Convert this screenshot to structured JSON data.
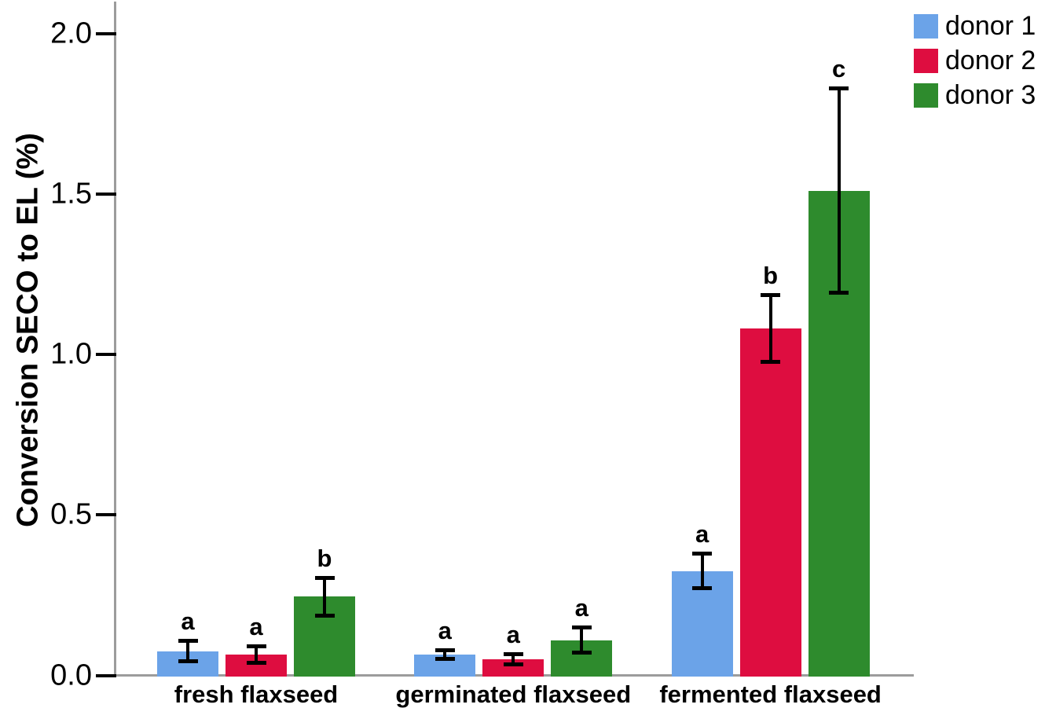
{
  "chart_data": {
    "type": "bar",
    "title": "",
    "ylabel": "Conversion SECO to EL (%)",
    "xlabel": "",
    "ylim": [
      0,
      2.1
    ],
    "yticks": [
      "0.0",
      "0.5",
      "1.0",
      "1.5",
      "2.0"
    ],
    "ytick_values": [
      0,
      0.5,
      1.0,
      1.5,
      2.0
    ],
    "categories": [
      "fresh flaxseed",
      "germinated flaxseed",
      "fermented flaxseed"
    ],
    "series": [
      {
        "name": "donor 1",
        "color": "#6BA3E8",
        "values": [
          0.075,
          0.065,
          0.325
        ],
        "errors": [
          0.033,
          0.014,
          0.055
        ],
        "sig_letters": [
          "a",
          "a",
          "a"
        ]
      },
      {
        "name": "donor 2",
        "color": "#DE0D40",
        "values": [
          0.065,
          0.05,
          1.08
        ],
        "errors": [
          0.027,
          0.018,
          0.105
        ],
        "sig_letters": [
          "a",
          "a",
          "b"
        ]
      },
      {
        "name": "donor 3",
        "color": "#2E8B2D",
        "values": [
          0.245,
          0.11,
          1.51
        ],
        "errors": [
          0.06,
          0.04,
          0.32
        ],
        "sig_letters": [
          "b",
          "a",
          "c"
        ]
      }
    ],
    "grid": false,
    "error_bars": true,
    "legend_position": "top-right",
    "axis_color": "#9C9C9C",
    "error_bar_color": "#000000"
  }
}
